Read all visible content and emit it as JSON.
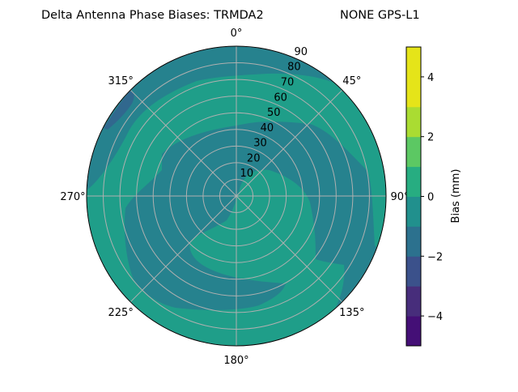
{
  "chart_data": {
    "type": "polar-contour",
    "title": "Delta Antenna Phase Biases: TRMDA2",
    "subtitle": "NONE GPS-L1",
    "angle_ticks": [
      "0°",
      "45°",
      "90°",
      "135°",
      "180°",
      "225°",
      "270°",
      "315°"
    ],
    "angle_tick_values": [
      0,
      45,
      90,
      135,
      180,
      225,
      270,
      315
    ],
    "radial_ticks": [
      "10",
      "20",
      "30",
      "40",
      "50",
      "60",
      "70",
      "80",
      "90"
    ],
    "radial_tick_values": [
      10,
      20,
      30,
      40,
      50,
      60,
      70,
      80,
      90
    ],
    "radial_range": [
      0,
      90
    ],
    "angle_zero": "top",
    "angle_direction": "clockwise",
    "grid": true,
    "colorbar": {
      "label": "Bias (mm)",
      "range": [
        -5,
        5
      ],
      "ticks": [
        "4",
        "2",
        "0",
        "−2",
        "−4"
      ],
      "tick_values": [
        4,
        2,
        0,
        -2,
        -4
      ],
      "levels": [
        -5,
        -4,
        -3,
        -2,
        -1,
        0,
        1,
        2,
        3,
        4,
        5
      ],
      "colors": [
        "#440f76",
        "#472d7b",
        "#3b518b",
        "#2c718e",
        "#21908d",
        "#27ad81",
        "#5cc863",
        "#aadc32",
        "#e5e419",
        "#e5e419"
      ]
    },
    "visible_levels": [
      {
        "range": [
          0,
          1
        ],
        "color": "#1f9e89",
        "role": "background"
      },
      {
        "range": [
          -1,
          0
        ],
        "color": "#26828e"
      },
      {
        "range": [
          -2,
          -1
        ],
        "color": "#31688e"
      }
    ]
  }
}
